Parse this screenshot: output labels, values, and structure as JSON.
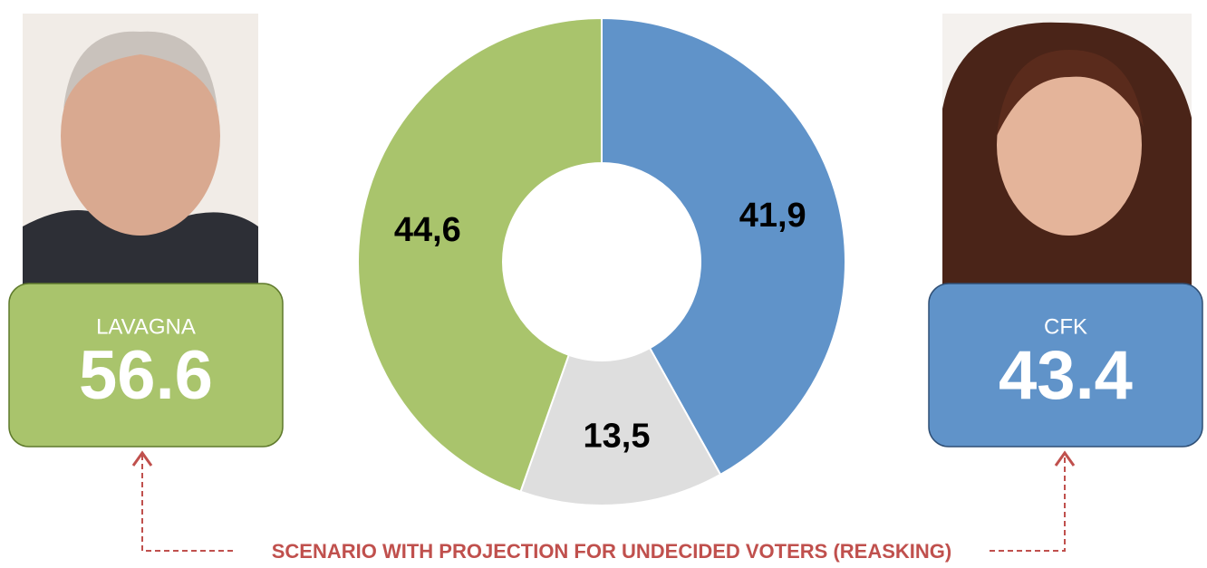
{
  "chart_data": {
    "type": "donut",
    "values": [
      41.9,
      13.5,
      44.6
    ],
    "value_labels": [
      "41,9",
      "13,5",
      "44,6"
    ],
    "colors": [
      "#6093c9",
      "#dedede",
      "#a9c46c"
    ],
    "candidates": [
      {
        "name": "LAVAGNA",
        "value": 56.6,
        "color": "#a9c46c",
        "border": "#5f7a2c"
      },
      {
        "name": "CFK",
        "value": 43.4,
        "color": "#6093c9",
        "border": "#2f4f75"
      }
    ],
    "annotation": "SCENARIO  WITH PROJECTION FOR UNDECIDED VOTERS (REASKING)",
    "annotation_color": "#c0504d"
  }
}
